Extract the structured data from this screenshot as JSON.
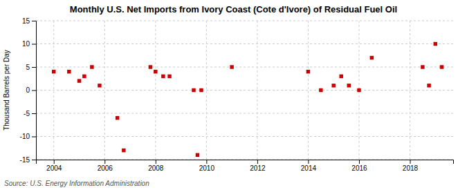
{
  "chart_data": {
    "type": "scatter",
    "title": "Monthly U.S. Net Imports from Ivory Coast (Cote d'Ivore) of Residual Fuel Oil",
    "y_label": "Thousand Barrels per Day",
    "annotations": [
      "Source: U.S. Energy Information Administration"
    ],
    "x": [
      2004.0,
      2004.6,
      2005.0,
      2005.2,
      2005.5,
      2005.8,
      2006.5,
      2006.75,
      2007.8,
      2008.0,
      2008.3,
      2008.55,
      2009.5,
      2009.65,
      2009.8,
      2011.0,
      2014.0,
      2014.5,
      2015.0,
      2015.3,
      2015.6,
      2016.0,
      2016.5,
      2018.5,
      2018.75,
      2019.0,
      2019.25
    ],
    "values": [
      4,
      4,
      2,
      3,
      5,
      1,
      -6,
      -13,
      5,
      4,
      3,
      3,
      0,
      -14,
      0,
      5,
      4,
      0,
      1,
      3,
      1,
      0,
      7,
      5,
      1,
      10,
      5
    ],
    "color": "#cc0000",
    "marker": "square",
    "xlim": [
      2003.3,
      2019.7
    ],
    "xticks": [
      2004,
      2006,
      2008,
      2010,
      2012,
      2014,
      2016,
      2018
    ],
    "ylim": [
      -15,
      15
    ],
    "yticks": [
      -15,
      -10,
      -5,
      0,
      5,
      10,
      15
    ],
    "grid": true
  }
}
